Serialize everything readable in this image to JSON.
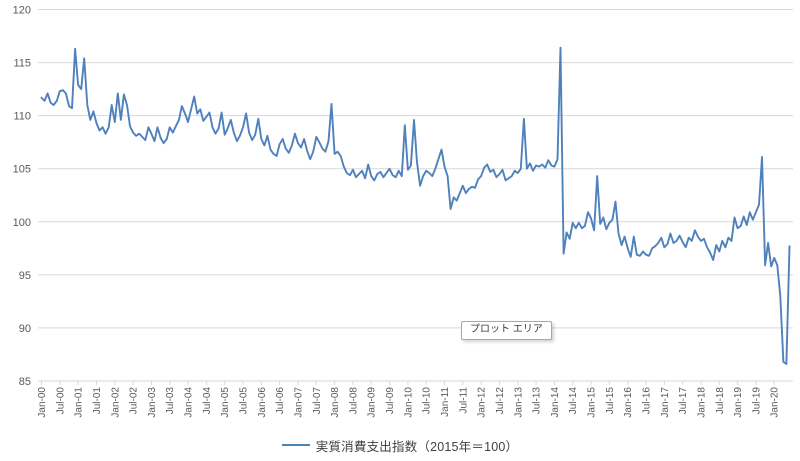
{
  "ui": {
    "tooltip": "プロット エリア",
    "legend": {
      "label": "実質消費支出指数（2015年＝100）"
    }
  },
  "chart_data": {
    "type": "line",
    "title": "",
    "legend_entries": [
      "実質消費支出指数（2015年＝100）"
    ],
    "legend_position": "bottom",
    "grid": "horizontal-only",
    "x_unit": "month",
    "x_start": "Jan-00",
    "x_end": "Jun-20",
    "x_tick_labels": [
      "Jan-00",
      "Jul-00",
      "Jan-01",
      "Jul-01",
      "Jan-02",
      "Jul-02",
      "Jan-03",
      "Jul-03",
      "Jan-04",
      "Jul-04",
      "Jan-05",
      "Jul-05",
      "Jan-06",
      "Jul-06",
      "Jan-07",
      "Jul-07",
      "Jan-08",
      "Jul-08",
      "Jan-09",
      "Jul-09",
      "Jan-10",
      "Jul-10",
      "Jan-11",
      "Jul-11",
      "Jan-12",
      "Jul-12",
      "Jan-13",
      "Jul-13",
      "Jan-14",
      "Jul-14",
      "Jan-15",
      "Jul-15",
      "Jan-16",
      "Jul-16",
      "Jan-17",
      "Jul-17",
      "Jan-18",
      "Jul-18",
      "Jan-19",
      "Jul-19",
      "Jan-20"
    ],
    "y_ticks": [
      120,
      115,
      110,
      105,
      100,
      95,
      90,
      85
    ],
    "ylim": [
      85,
      120
    ],
    "line_color": "#4F81BD",
    "gridline_color": "#D9D9D9",
    "axis_label_color": "#595959",
    "values": [
      111.7,
      111.4,
      112.1,
      111.2,
      111.0,
      111.4,
      112.3,
      112.4,
      112.1,
      110.9,
      110.7,
      116.3,
      112.9,
      112.5,
      115.4,
      111.0,
      109.6,
      110.4,
      109.3,
      108.6,
      108.9,
      108.3,
      108.9,
      111.0,
      109.4,
      112.1,
      109.6,
      112.0,
      111.0,
      109.0,
      108.4,
      108.1,
      108.3,
      108.0,
      107.7,
      108.9,
      108.3,
      107.6,
      108.9,
      107.9,
      107.4,
      107.8,
      108.9,
      108.4,
      109.0,
      109.6,
      110.9,
      110.2,
      109.4,
      110.6,
      111.8,
      110.2,
      110.6,
      109.5,
      109.9,
      110.3,
      108.9,
      108.3,
      108.8,
      110.3,
      108.2,
      108.8,
      109.6,
      108.4,
      107.6,
      108.1,
      108.9,
      110.2,
      108.4,
      107.7,
      108.2,
      109.7,
      107.8,
      107.2,
      108.1,
      106.8,
      106.4,
      106.2,
      107.3,
      107.8,
      106.9,
      106.5,
      107.2,
      108.3,
      107.4,
      107.0,
      107.8,
      106.7,
      105.9,
      106.6,
      108.0,
      107.5,
      106.9,
      106.6,
      107.6,
      111.1,
      106.4,
      106.6,
      106.2,
      105.2,
      104.6,
      104.4,
      104.9,
      104.2,
      104.5,
      104.8,
      104.1,
      105.4,
      104.3,
      103.9,
      104.5,
      104.7,
      104.2,
      104.6,
      105.0,
      104.4,
      104.2,
      104.8,
      104.3,
      109.1,
      104.9,
      105.3,
      109.6,
      105.6,
      103.4,
      104.3,
      104.8,
      104.6,
      104.3,
      105.0,
      105.9,
      106.8,
      105.2,
      104.3,
      101.2,
      102.3,
      102.0,
      102.7,
      103.4,
      102.7,
      103.1,
      103.3,
      103.2,
      104.0,
      104.3,
      105.1,
      105.4,
      104.7,
      104.9,
      104.2,
      104.5,
      104.9,
      103.9,
      104.1,
      104.3,
      104.8,
      104.6,
      105.0,
      109.7,
      105.0,
      105.5,
      104.8,
      105.3,
      105.2,
      105.4,
      105.1,
      105.8,
      105.3,
      105.2,
      105.9,
      116.4,
      97.0,
      99.0,
      98.4,
      99.9,
      99.4,
      99.9,
      99.4,
      99.6,
      100.9,
      100.3,
      99.2,
      104.3,
      99.8,
      100.4,
      99.3,
      99.9,
      100.2,
      101.9,
      98.9,
      97.8,
      98.6,
      97.5,
      96.7,
      98.6,
      96.9,
      96.8,
      97.2,
      96.9,
      96.8,
      97.5,
      97.7,
      98.0,
      98.5,
      97.6,
      97.9,
      98.9,
      98.0,
      98.2,
      98.7,
      98.1,
      97.6,
      98.5,
      98.2,
      99.2,
      98.6,
      98.2,
      98.4,
      97.6,
      97.1,
      96.4,
      97.8,
      97.2,
      98.2,
      97.6,
      98.5,
      98.2,
      100.4,
      99.4,
      99.6,
      100.5,
      99.7,
      100.9,
      100.2,
      100.9,
      101.6,
      106.1,
      95.9,
      98.0,
      95.8,
      96.6,
      95.9,
      93.0,
      86.8,
      86.6,
      97.7
    ]
  }
}
